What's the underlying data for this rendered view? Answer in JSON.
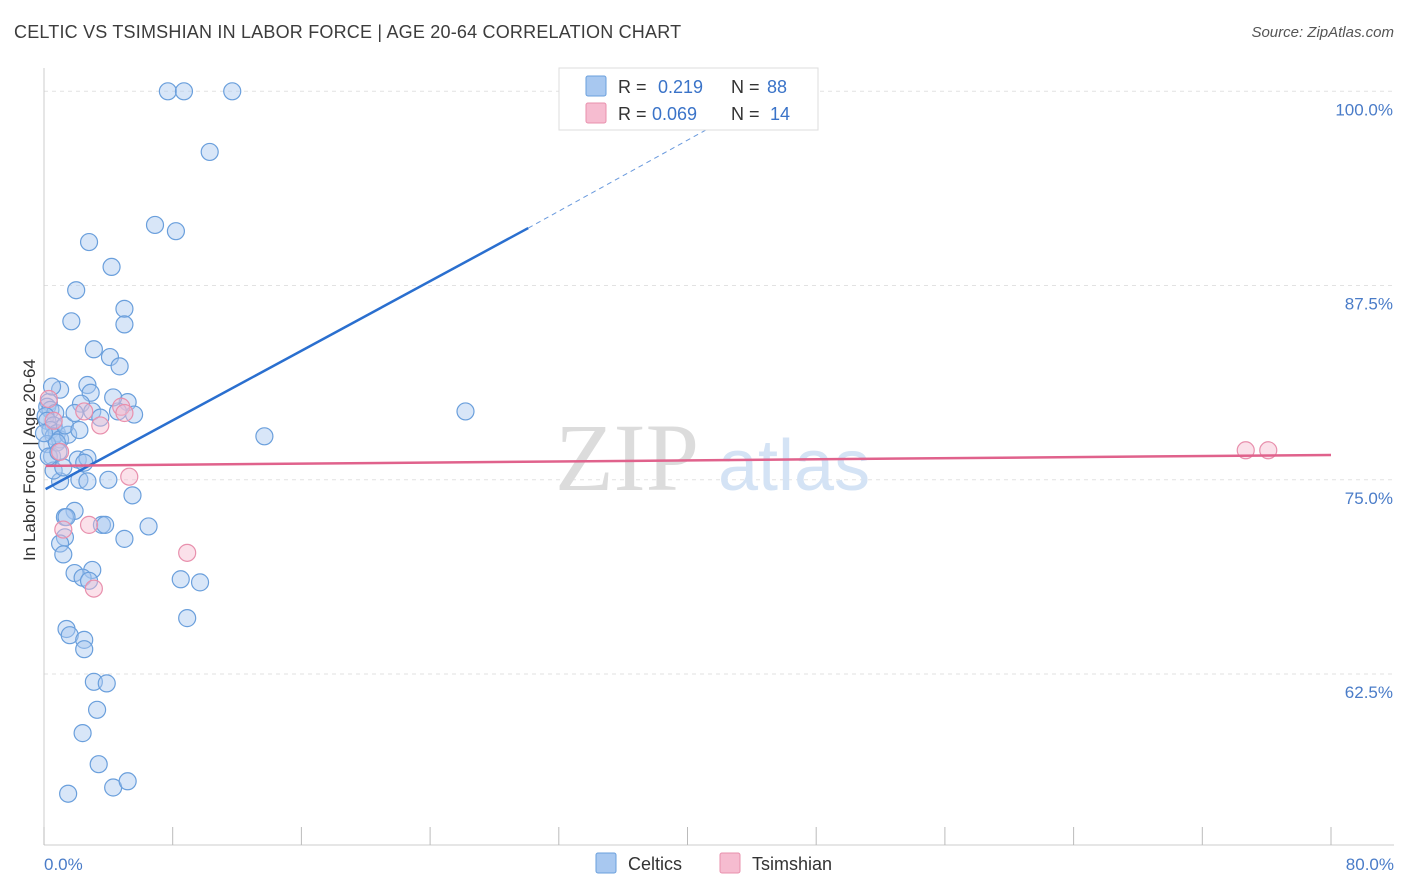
{
  "title": "CELTIC VS TSIMSHIAN IN LABOR FORCE | AGE 20-64 CORRELATION CHART",
  "source": "Source: ZipAtlas.com",
  "watermark": {
    "zip": "ZIP",
    "atlas": "atlas"
  },
  "legend": {
    "rows": [
      {
        "r_label": "R =",
        "r_value": "0.219",
        "n_label": "N =",
        "n_value": "88",
        "color": "#a8c8f0",
        "stroke": "#6a9fdc"
      },
      {
        "r_label": "R =",
        "r_value": "0.069",
        "n_label": "N =",
        "n_value": "14",
        "color": "#f6bcd0",
        "stroke": "#e890ad"
      }
    ]
  },
  "chart_data": {
    "type": "scatter",
    "title": "CELTIC VS TSIMSHIAN IN LABOR FORCE | AGE 20-64 CORRELATION CHART",
    "xlabel": "",
    "ylabel": "In Labor Force | Age 20-64",
    "xlim": [
      0,
      80
    ],
    "ylim": [
      51.5,
      101.5
    ],
    "x_tick_labels": [
      {
        "value": 0,
        "label": "0.0%"
      },
      {
        "value": 80,
        "label": "80.0%"
      }
    ],
    "y_ticks": [
      {
        "value": 100,
        "label": "100.0%"
      },
      {
        "value": 87.5,
        "label": "87.5%"
      },
      {
        "value": 75,
        "label": "75.0%"
      },
      {
        "value": 62.5,
        "label": "62.5%"
      }
    ],
    "grid": true,
    "legend_position": "top-center",
    "series": [
      {
        "name": "Celtics",
        "color": "#a8c8f0",
        "stroke": "#6a9fdc",
        "trend": {
          "x0": 0.1,
          "y0": 74.4,
          "x1": 30.1,
          "y1": 91.2,
          "dash_to_x": 43.4,
          "dash_to_y": 98.8,
          "color": "#2a6fcf"
        },
        "points": [
          [
            7.7,
            100
          ],
          [
            8.7,
            100
          ],
          [
            11.7,
            100
          ],
          [
            10.3,
            96.1
          ],
          [
            6.9,
            91.4
          ],
          [
            8.2,
            91.0
          ],
          [
            2.8,
            90.3
          ],
          [
            4.2,
            88.7
          ],
          [
            2.0,
            87.2
          ],
          [
            5.0,
            86.0
          ],
          [
            1.7,
            85.2
          ],
          [
            5.0,
            85.0
          ],
          [
            3.1,
            83.4
          ],
          [
            4.1,
            82.9
          ],
          [
            4.7,
            82.3
          ],
          [
            1.0,
            80.8
          ],
          [
            2.7,
            81.1
          ],
          [
            2.9,
            80.6
          ],
          [
            2.3,
            79.9
          ],
          [
            0.3,
            80.0
          ],
          [
            0.2,
            79.7
          ],
          [
            0.4,
            79.5
          ],
          [
            0.7,
            79.3
          ],
          [
            0.1,
            79.1
          ],
          [
            0.2,
            78.8
          ],
          [
            0.6,
            78.5
          ],
          [
            0.4,
            78.2
          ],
          [
            0.8,
            78.0
          ],
          [
            0.6,
            77.8
          ],
          [
            1.0,
            77.6
          ],
          [
            1.5,
            77.9
          ],
          [
            1.3,
            78.5
          ],
          [
            1.9,
            79.3
          ],
          [
            3.0,
            79.4
          ],
          [
            5.2,
            80.0
          ],
          [
            4.6,
            79.4
          ],
          [
            5.6,
            79.2
          ],
          [
            0.2,
            77.3
          ],
          [
            0.5,
            76.5
          ],
          [
            2.1,
            76.3
          ],
          [
            2.7,
            76.4
          ],
          [
            2.5,
            76.1
          ],
          [
            0.8,
            77.4
          ],
          [
            2.2,
            75.0
          ],
          [
            2.7,
            74.9
          ],
          [
            1.0,
            74.9
          ],
          [
            0.6,
            75.6
          ],
          [
            4.0,
            75.0
          ],
          [
            5.5,
            74.0
          ],
          [
            1.9,
            73.0
          ],
          [
            1.3,
            72.6
          ],
          [
            1.4,
            72.6
          ],
          [
            3.6,
            72.1
          ],
          [
            3.8,
            72.1
          ],
          [
            6.5,
            72.0
          ],
          [
            1.3,
            71.3
          ],
          [
            1.0,
            70.9
          ],
          [
            5.0,
            71.2
          ],
          [
            1.2,
            70.2
          ],
          [
            1.9,
            69.0
          ],
          [
            3.0,
            69.2
          ],
          [
            2.4,
            68.7
          ],
          [
            2.8,
            68.5
          ],
          [
            8.5,
            68.6
          ],
          [
            9.7,
            68.4
          ],
          [
            8.9,
            66.1
          ],
          [
            1.4,
            65.4
          ],
          [
            1.6,
            65.0
          ],
          [
            2.5,
            64.7
          ],
          [
            2.5,
            64.1
          ],
          [
            3.1,
            62.0
          ],
          [
            3.9,
            61.9
          ],
          [
            3.3,
            60.2
          ],
          [
            2.4,
            58.7
          ],
          [
            3.4,
            56.7
          ],
          [
            1.5,
            54.8
          ],
          [
            4.3,
            55.2
          ],
          [
            5.2,
            55.6
          ],
          [
            26.2,
            79.4
          ],
          [
            13.7,
            77.8
          ],
          [
            0.3,
            76.5
          ],
          [
            0.9,
            76.8
          ],
          [
            1.2,
            75.8
          ],
          [
            2.2,
            78.2
          ],
          [
            3.5,
            79.0
          ],
          [
            0.5,
            81.0
          ],
          [
            0.0,
            78.0
          ],
          [
            4.3,
            80.3
          ]
        ]
      },
      {
        "name": "Tsimshian",
        "color": "#f6bcd0",
        "stroke": "#e890ad",
        "trend": {
          "x0": 0.1,
          "y0": 75.9,
          "x1": 80,
          "y1": 76.6,
          "color": "#e0628c"
        },
        "points": [
          [
            0.3,
            80.2
          ],
          [
            1.0,
            76.8
          ],
          [
            2.5,
            79.4
          ],
          [
            3.5,
            78.5
          ],
          [
            4.8,
            79.7
          ],
          [
            5.0,
            79.3
          ],
          [
            5.3,
            75.2
          ],
          [
            2.8,
            72.1
          ],
          [
            1.2,
            71.8
          ],
          [
            8.9,
            70.3
          ],
          [
            3.1,
            68.0
          ],
          [
            74.7,
            76.9
          ],
          [
            76.1,
            76.9
          ],
          [
            0.6,
            78.8
          ]
        ]
      }
    ]
  }
}
